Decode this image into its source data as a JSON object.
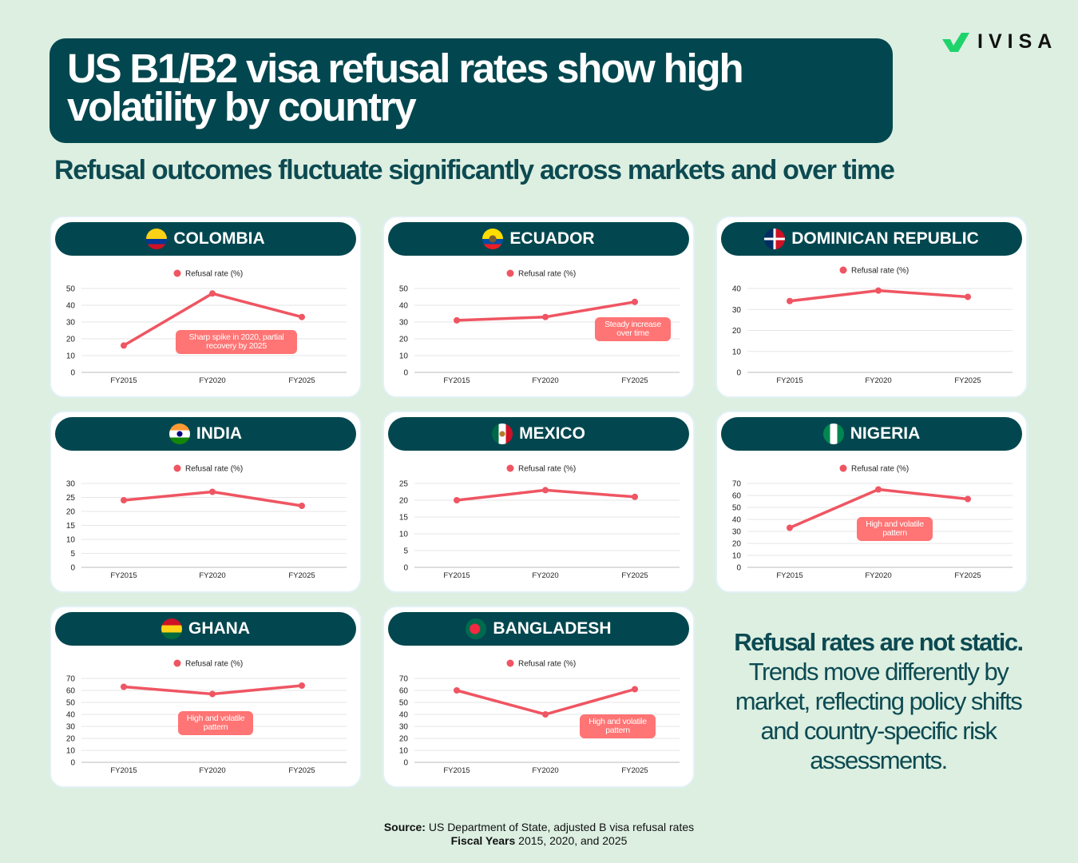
{
  "header": {
    "title": "US B1/B2 visa refusal rates show high volatility by country",
    "subtitle": "Refusal outcomes fluctuate significantly across markets and over time",
    "logo": "IVISA"
  },
  "legend_label": "Refusal rate (%)",
  "colors": {
    "line": "#ef5562",
    "note": "#ff7474",
    "dark": "#02474f",
    "bg": "#dcefe1"
  },
  "chart_data": [
    {
      "type": "line",
      "title": "COLOMBIA",
      "flag": "colombia",
      "categories": [
        "FY2015",
        "FY2020",
        "FY2025"
      ],
      "series": [
        {
          "name": "Refusal rate (%)",
          "values": [
            16,
            47,
            33
          ]
        }
      ],
      "ylim": [
        0,
        50
      ],
      "yticks": [
        0,
        10,
        20,
        30,
        40,
        50
      ],
      "annotation": "Sharp spike in 2020, partial recovery by 2025"
    },
    {
      "type": "line",
      "title": "ECUADOR",
      "flag": "ecuador",
      "categories": [
        "FY2015",
        "FY2020",
        "FY2025"
      ],
      "series": [
        {
          "name": "Refusal rate (%)",
          "values": [
            31,
            33,
            42
          ]
        }
      ],
      "ylim": [
        0,
        50
      ],
      "yticks": [
        0,
        10,
        20,
        30,
        40,
        50
      ],
      "annotation": "Steady increase over time"
    },
    {
      "type": "line",
      "title": "DOMINICAN REPUBLIC",
      "flag": "dominican",
      "categories": [
        "FY2015",
        "FY2020",
        "FY2025"
      ],
      "series": [
        {
          "name": "Refusal rate (%)",
          "values": [
            34,
            39,
            36
          ]
        }
      ],
      "ylim": [
        0,
        40
      ],
      "yticks": [
        0,
        10,
        20,
        30,
        40
      ],
      "annotation": null
    },
    {
      "type": "line",
      "title": "INDIA",
      "flag": "india",
      "categories": [
        "FY2015",
        "FY2020",
        "FY2025"
      ],
      "series": [
        {
          "name": "Refusal rate (%)",
          "values": [
            24,
            27,
            22
          ]
        }
      ],
      "ylim": [
        0,
        30
      ],
      "yticks": [
        0,
        5,
        10,
        15,
        20,
        25,
        30
      ],
      "annotation": null
    },
    {
      "type": "line",
      "title": "MEXICO",
      "flag": "mexico",
      "categories": [
        "FY2015",
        "FY2020",
        "FY2025"
      ],
      "series": [
        {
          "name": "Refusal rate (%)",
          "values": [
            20,
            23,
            21
          ]
        }
      ],
      "ylim": [
        0,
        25
      ],
      "yticks": [
        0,
        5,
        10,
        15,
        20,
        25
      ],
      "annotation": null
    },
    {
      "type": "line",
      "title": "NIGERIA",
      "flag": "nigeria",
      "categories": [
        "FY2015",
        "FY2020",
        "FY2025"
      ],
      "series": [
        {
          "name": "Refusal rate (%)",
          "values": [
            33,
            65,
            57
          ]
        }
      ],
      "ylim": [
        0,
        70
      ],
      "yticks": [
        0,
        10,
        20,
        30,
        40,
        50,
        60,
        70
      ],
      "annotation": "High and volatile pattern"
    },
    {
      "type": "line",
      "title": "GHANA",
      "flag": "ghana",
      "categories": [
        "FY2015",
        "FY2020",
        "FY2025"
      ],
      "series": [
        {
          "name": "Refusal rate (%)",
          "values": [
            63,
            57,
            64
          ]
        }
      ],
      "ylim": [
        0,
        70
      ],
      "yticks": [
        0,
        10,
        20,
        30,
        40,
        50,
        60,
        70
      ],
      "annotation": "High and volatile pattern"
    },
    {
      "type": "line",
      "title": "BANGLADESH",
      "flag": "bangladesh",
      "categories": [
        "FY2015",
        "FY2020",
        "FY2025"
      ],
      "series": [
        {
          "name": "Refusal rate (%)",
          "values": [
            60,
            40,
            61
          ]
        }
      ],
      "ylim": [
        0,
        70
      ],
      "yticks": [
        0,
        10,
        20,
        30,
        40,
        50,
        60,
        70
      ],
      "annotation": "High and volatile pattern"
    }
  ],
  "side_note": {
    "bold": "Refusal rates are not static.",
    "text": "Trends move differently by market, reflecting policy shifts and country-specific risk assessments."
  },
  "footer": {
    "source_label": "Source:",
    "source_text": " US Department of State, adjusted B visa refusal rates",
    "fy_label": "Fiscal Years",
    "fy_text": " 2015, 2020, and 2025"
  }
}
